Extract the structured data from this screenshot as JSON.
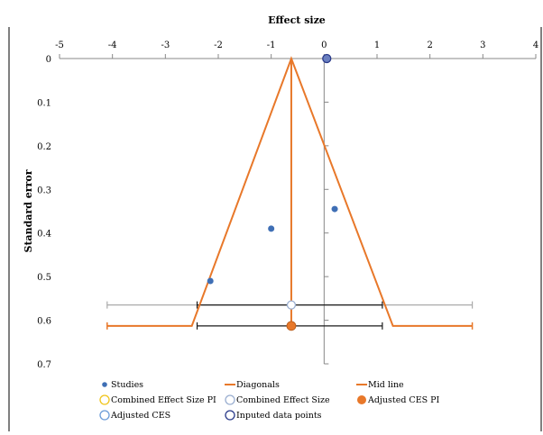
{
  "chart_data": {
    "type": "scatter",
    "xlabel": "Effect size",
    "ylabel": "Standard error",
    "xlim": [
      -5,
      4
    ],
    "ylim": [
      0,
      0.7
    ],
    "x_ticks": [
      "-5",
      "-4",
      "-3",
      "-2",
      "-1",
      "0",
      "1",
      "2",
      "3",
      "4"
    ],
    "y_ticks": [
      "0",
      "0.1",
      "0.2",
      "0.3",
      "0.4",
      "0.5",
      "0.6",
      "0.7"
    ],
    "x_axis_position": "top",
    "grid": false,
    "legend_position": "bottom",
    "series": [
      {
        "name": "Studies",
        "marker": "filled-circle",
        "color": "#3f6fb5",
        "points": [
          {
            "x": 0.2,
            "y": 0.345
          },
          {
            "x": -1.0,
            "y": 0.39
          },
          {
            "x": -2.15,
            "y": 0.51
          }
        ]
      },
      {
        "name": "Diagonals",
        "marker": "line",
        "color": "#e8782a",
        "points": [
          {
            "x": -4.1,
            "y": 0.613
          },
          {
            "x": -2.5,
            "y": 0.613
          },
          {
            "x": -0.62,
            "y": 0
          },
          {
            "x": 1.3,
            "y": 0.613
          },
          {
            "x": 2.8,
            "y": 0.613
          }
        ]
      },
      {
        "name": "Mid line",
        "marker": "line",
        "color": "#e8782a",
        "points": [
          {
            "x": -0.62,
            "y": 0
          },
          {
            "x": -0.62,
            "y": 0.613
          }
        ]
      },
      {
        "name": "Combined Effect Size PI",
        "marker": "hollow-circle",
        "color": "#f0c419",
        "points": [
          {
            "x": -4.1,
            "y": 0.565
          },
          {
            "x": 2.8,
            "y": 0.565
          }
        ]
      },
      {
        "name": "Combined Effect Size",
        "marker": "hollow-circle",
        "color": "#9aaed0",
        "points": [
          {
            "x": -0.62,
            "y": 0.565
          }
        ]
      },
      {
        "name": "Adjusted CES PI",
        "marker": "filled-circle",
        "color": "#e8782a",
        "points": [
          {
            "x": -0.62,
            "y": 0.613
          }
        ]
      },
      {
        "name": "Adjusted CES",
        "marker": "hollow-circle",
        "color": "#6a9bd8",
        "points": [
          {
            "x": -2.4,
            "y": 0.565
          },
          {
            "x": 1.1,
            "y": 0.565
          },
          {
            "x": -2.4,
            "y": 0.613
          },
          {
            "x": 1.1,
            "y": 0.613
          }
        ]
      },
      {
        "name": "Inputed data points",
        "marker": "hollow-circle",
        "color": "#2a3a8a",
        "points": [
          {
            "x": 0.05,
            "y": 0
          }
        ]
      }
    ],
    "colors": {
      "axis": "#888888",
      "pi_line": "#aaaaaa",
      "ci_line": "#1a1a1a"
    }
  }
}
